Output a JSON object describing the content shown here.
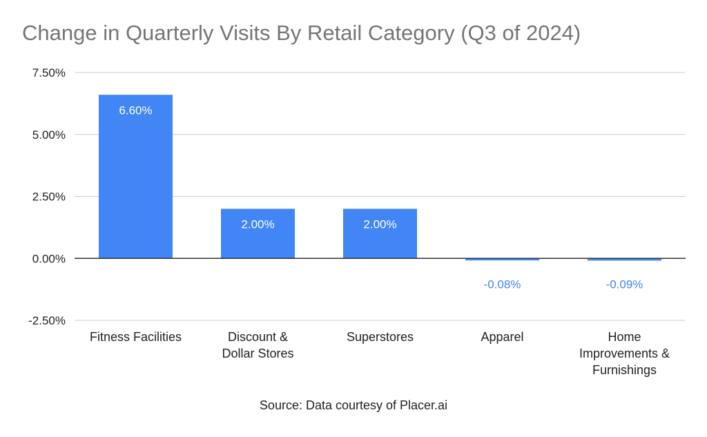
{
  "chart_data": {
    "type": "bar",
    "title": "Change in Quarterly Visits By Retail Category (Q3 of 2024)",
    "categories": [
      [
        "Fitness Facilities"
      ],
      [
        "Discount &",
        "Dollar Stores"
      ],
      [
        "Superstores"
      ],
      [
        "Apparel"
      ],
      [
        "Home",
        "Improvements &",
        "Furnishings"
      ]
    ],
    "values": [
      6.6,
      2.0,
      2.0,
      -0.08,
      -0.09
    ],
    "data_labels": [
      "6.60%",
      "2.00%",
      "2.00%",
      "-0.08%",
      "-0.09%"
    ],
    "yticks": [
      7.5,
      5.0,
      2.5,
      0.0,
      -2.5
    ],
    "ytick_labels": [
      "7.50%",
      "5.00%",
      "2.50%",
      "0.00%",
      "-2.50%"
    ],
    "ylim": [
      -2.5,
      7.5
    ],
    "xlabel": "",
    "ylabel": "",
    "grid": true,
    "colors": {
      "bar": "#4285f4",
      "label_inside": "#ffffff",
      "label_outside": "#4285f4",
      "grid": "#cccccc",
      "zero_line": "#333333"
    }
  },
  "footer": {
    "source": "Source: Data courtesy of Placer.ai"
  }
}
